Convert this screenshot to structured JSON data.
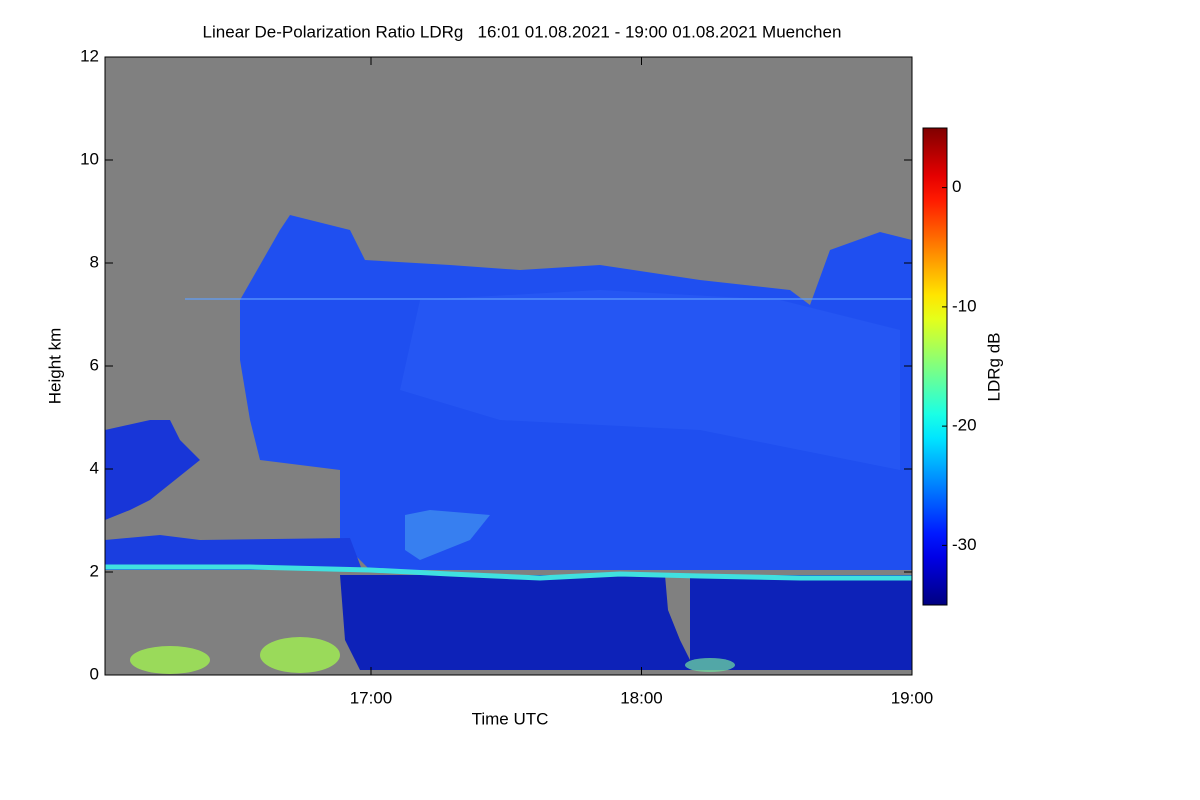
{
  "chart_data": {
    "type": "heatmap",
    "title": "Linear De-Polarization Ratio LDRg   16:01 01.08.2021 - 19:00 01.08.2021 Muenchen",
    "x_label": "Time UTC",
    "y_label": "Height km",
    "colorbar_label": "LDRg dB",
    "colormap": "jet",
    "xlim": [
      16.0167,
      19
    ],
    "xticks": [
      {
        "value": 17,
        "label": "17:00"
      },
      {
        "value": 18,
        "label": "18:00"
      },
      {
        "value": 19,
        "label": "19:00"
      }
    ],
    "ylim": [
      0,
      12
    ],
    "yticks": [
      0,
      2,
      4,
      6,
      8,
      10,
      12
    ],
    "clim": [
      -35,
      5
    ],
    "cticks": [
      0,
      -10,
      -20,
      -30
    ]
  }
}
